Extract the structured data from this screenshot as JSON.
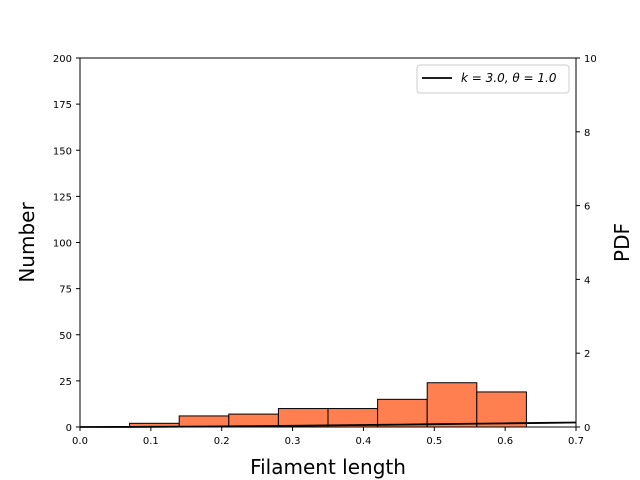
{
  "chart_data": {
    "type": "bar",
    "title": "",
    "xlabel": "Filament length",
    "ylabel": "Number",
    "y2label": "PDF",
    "xlim": [
      0.0,
      0.7
    ],
    "ylim": [
      0,
      200
    ],
    "y2lim": [
      0,
      10
    ],
    "xticks": [
      "0.0",
      "0.1",
      "0.2",
      "0.3",
      "0.4",
      "0.5",
      "0.6",
      "0.7"
    ],
    "yticks": [
      "0",
      "25",
      "50",
      "75",
      "100",
      "125",
      "150",
      "175",
      "200"
    ],
    "y2ticks": [
      "0",
      "2",
      "4",
      "6",
      "8",
      "10"
    ],
    "bar_color": "#ff7f50",
    "bins": [
      {
        "start": 0.07,
        "end": 0.14,
        "count": 2
      },
      {
        "start": 0.14,
        "end": 0.21,
        "count": 6
      },
      {
        "start": 0.21,
        "end": 0.28,
        "count": 7
      },
      {
        "start": 0.28,
        "end": 0.35,
        "count": 10
      },
      {
        "start": 0.35,
        "end": 0.42,
        "count": 10
      },
      {
        "start": 0.42,
        "end": 0.49,
        "count": 15
      },
      {
        "start": 0.49,
        "end": 0.56,
        "count": 24
      },
      {
        "start": 0.56,
        "end": 0.63,
        "count": 19
      }
    ],
    "series": [
      {
        "name": "$k=3.0, \\theta=1.0$",
        "label": "k = 3.0, θ = 1.0",
        "color": "#000000",
        "axis": "right",
        "x": [
          0.0,
          0.05,
          0.1,
          0.15,
          0.2,
          0.25,
          0.3,
          0.35,
          0.4,
          0.45,
          0.5,
          0.55,
          0.6,
          0.65,
          0.7
        ],
        "y": [
          0.0,
          0.0012,
          0.0045,
          0.0096,
          0.0164,
          0.0243,
          0.0333,
          0.0431,
          0.0536,
          0.0645,
          0.0758,
          0.0872,
          0.0988,
          0.1104,
          0.1217
        ]
      }
    ],
    "legend_position": "upper-right",
    "grid": false
  }
}
